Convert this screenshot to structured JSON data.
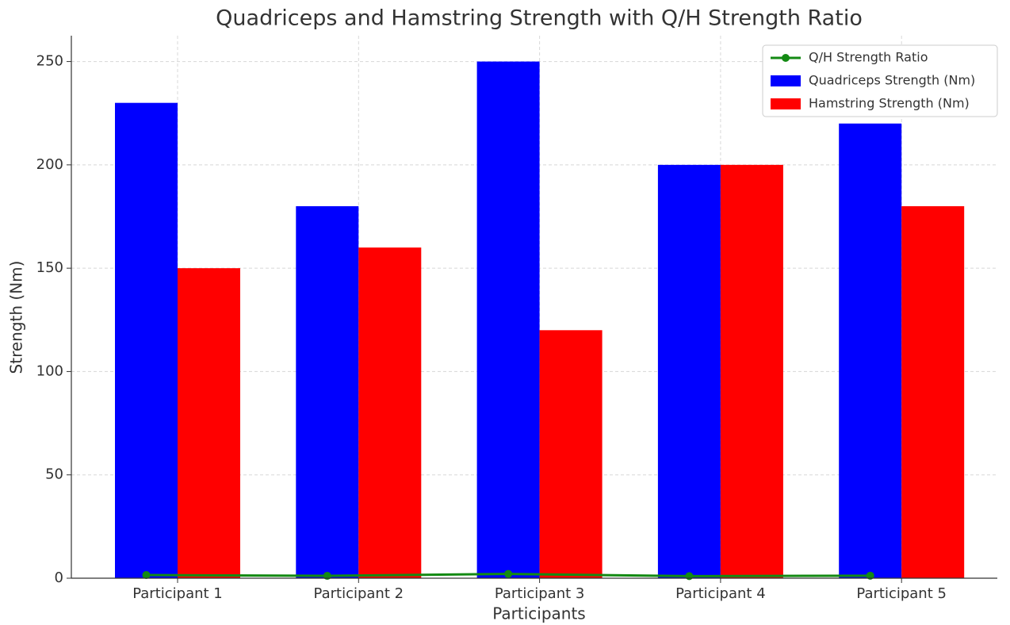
{
  "chart_data": {
    "type": "bar",
    "title": "Quadriceps and Hamstring Strength with Q/H Strength Ratio",
    "x_label": "Participants",
    "y_label": "Strength (Nm)",
    "categories": [
      "Participant 1",
      "Participant 2",
      "Participant 3",
      "Participant 4",
      "Participant 5"
    ],
    "series": [
      {
        "name": "Q/H Strength Ratio",
        "type": "line",
        "color": "#138a13",
        "values": [
          1.53,
          1.13,
          2.08,
          1.0,
          1.22
        ]
      },
      {
        "name": "Quadriceps Strength (Nm)",
        "type": "bar",
        "color": "#0000ff",
        "values": [
          230,
          180,
          250,
          200,
          220
        ]
      },
      {
        "name": "Hamstring Strength (Nm)",
        "type": "bar",
        "color": "#ff0000",
        "values": [
          150,
          160,
          120,
          200,
          180
        ]
      }
    ],
    "ylim": [
      0,
      262.5
    ],
    "yticks": [
      0,
      50,
      100,
      150,
      200,
      250
    ],
    "grid": true,
    "legend": "upper right"
  }
}
